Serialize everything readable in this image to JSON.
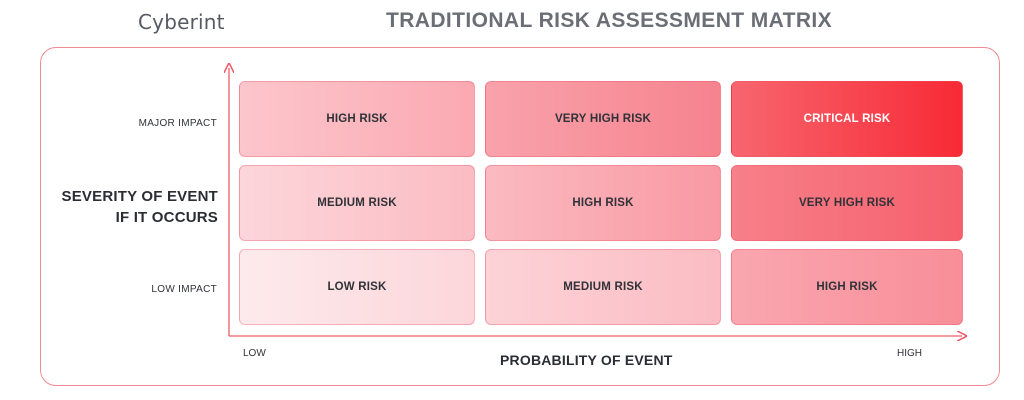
{
  "brand": "Cyberint",
  "title": "TRADITIONAL RISK ASSESSMENT MATRIX",
  "axes": {
    "y_title_line1": "SEVERITY OF EVENT",
    "y_title_line2": "IF IT OCCURS",
    "x_title": "PROBABILITY OF EVENT",
    "x_low": "LOW",
    "x_high": "HIGH"
  },
  "rows": [
    {
      "label": "MAJOR IMPACT",
      "cells": [
        "HIGH RISK",
        "VERY HIGH RISK",
        "CRITICAL RISK"
      ]
    },
    {
      "label": "",
      "cells": [
        "MEDIUM RISK",
        "HIGH RISK",
        "VERY HIGH RISK"
      ]
    },
    {
      "label": "LOW IMPACT",
      "cells": [
        "LOW RISK",
        "MEDIUM RISK",
        "HIGH RISK"
      ]
    }
  ],
  "colors": {
    "low": "#fde0e3",
    "medium": "#fbb8c0",
    "high": "#f99aa4",
    "very_high": "#f5737f",
    "critical": "#f72a35",
    "axis": "#ee5c6a",
    "frame": "#f08a95"
  }
}
